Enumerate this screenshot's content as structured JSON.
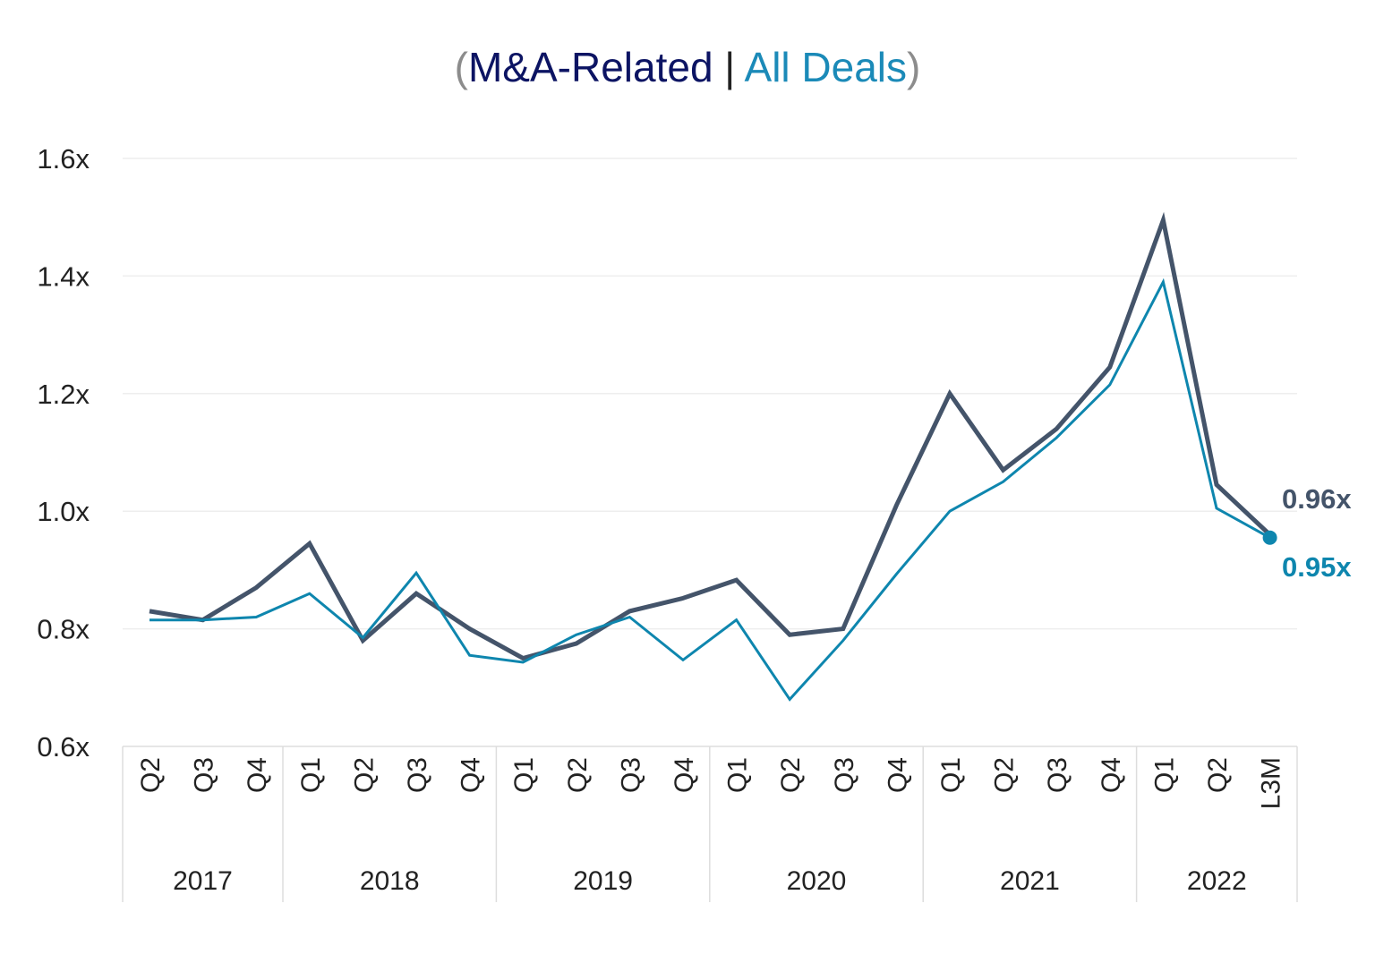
{
  "chart_data": {
    "type": "line",
    "title": {
      "open_paren": "(",
      "series1": "M&A-Related",
      "separator": " | ",
      "series2": "All Deals",
      "close_paren": ")"
    },
    "xlabel": "",
    "ylabel": "",
    "ylim": [
      0.6,
      1.6
    ],
    "yticks": [
      0.6,
      0.8,
      1.0,
      1.2,
      1.4,
      1.6
    ],
    "ytick_labels": [
      "0.6x",
      "0.8x",
      "1.0x",
      "1.2x",
      "1.4x",
      "1.6x"
    ],
    "grid": true,
    "categories": [
      "Q2",
      "Q3",
      "Q4",
      "Q1",
      "Q2",
      "Q3",
      "Q4",
      "Q1",
      "Q2",
      "Q3",
      "Q4",
      "Q1",
      "Q2",
      "Q3",
      "Q4",
      "Q1",
      "Q2",
      "Q3",
      "Q4",
      "Q1",
      "Q2",
      "L3M"
    ],
    "year_groups": [
      {
        "year": "2017",
        "count": 3
      },
      {
        "year": "2018",
        "count": 4
      },
      {
        "year": "2019",
        "count": 4
      },
      {
        "year": "2020",
        "count": 4
      },
      {
        "year": "2021",
        "count": 4
      },
      {
        "year": "2022",
        "count": 3
      }
    ],
    "series": [
      {
        "name": "M&A-Related",
        "color": "#44546a",
        "values": [
          0.83,
          0.815,
          0.87,
          0.945,
          0.78,
          0.86,
          0.8,
          0.75,
          0.775,
          0.83,
          0.852,
          0.883,
          0.79,
          0.8,
          1.01,
          1.2,
          1.07,
          1.14,
          1.245,
          1.495,
          1.045,
          0.96
        ],
        "end_label": "0.96x"
      },
      {
        "name": "All Deals",
        "color": "#0e86ae",
        "values": [
          0.815,
          0.815,
          0.82,
          0.86,
          0.785,
          0.895,
          0.755,
          0.743,
          0.79,
          0.82,
          0.747,
          0.815,
          0.68,
          0.78,
          0.893,
          1.0,
          1.05,
          1.125,
          1.215,
          1.39,
          1.005,
          0.955
        ],
        "end_label": "0.95x"
      }
    ]
  },
  "colors": {
    "paren": "#8c8c8c",
    "title_series1": "#0c1463",
    "title_separator": "#222222",
    "title_series2": "#1b8ab8",
    "gridline": "#eeeeee",
    "axis_frame": "#dddddd"
  }
}
